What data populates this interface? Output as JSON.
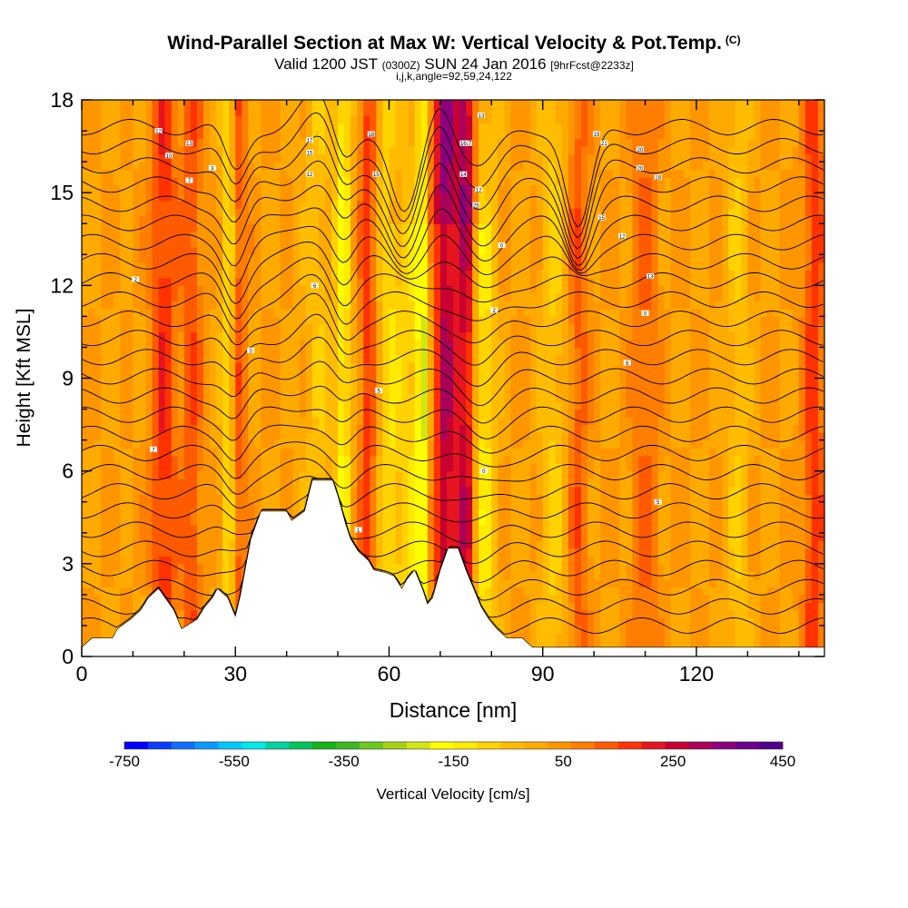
{
  "header": {
    "title": "Wind-Parallel Section at Max W: Vertical Velocity & Pot.Temp.",
    "title_suffix": "(C)",
    "valid_prefix": "Valid 1200 JST",
    "valid_utc": "(0300Z)",
    "valid_date": "SUN 24 Jan 2016",
    "forecast": "[9hrFcst@2233z]",
    "indices": "i,j,k,angle=92,59,24,122"
  },
  "chart_data": {
    "type": "heatmap",
    "xlabel": "Distance [nm]",
    "ylabel": "Height [Kft MSL]",
    "xlim": [
      0,
      145
    ],
    "ylim": [
      0,
      18
    ],
    "x_ticks": [
      0,
      30,
      60,
      90,
      120
    ],
    "y_ticks": [
      0,
      3,
      6,
      9,
      12,
      15,
      18
    ],
    "grid": false,
    "colorbar": {
      "label": "Vertical Velocity [cm/s]",
      "min": -750,
      "max": 450,
      "step": 50,
      "tick_labels": [
        "-750",
        "-550",
        "-350",
        "-150",
        "50",
        "250",
        "450"
      ],
      "colors": [
        "#0000ff",
        "#0a3cff",
        "#0f6eff",
        "#0a9bff",
        "#00c8ff",
        "#00e8e8",
        "#00d2a0",
        "#00c35a",
        "#14b414",
        "#3cb91e",
        "#6ec81e",
        "#a5d214",
        "#d2e614",
        "#ffff00",
        "#ffea00",
        "#ffd200",
        "#ffbc00",
        "#ffaa00",
        "#ff9600",
        "#ff7d00",
        "#ff5a00",
        "#ff3200",
        "#e6141e",
        "#c80032",
        "#aa005a",
        "#8c0080",
        "#6e008c",
        "#50008c"
      ]
    },
    "terrain_kft": [
      {
        "x": 0,
        "h": 0.3
      },
      {
        "x": 2,
        "h": 0.6
      },
      {
        "x": 6,
        "h": 0.6
      },
      {
        "x": 7,
        "h": 0.9
      },
      {
        "x": 9.5,
        "h": 1.2
      },
      {
        "x": 11.5,
        "h": 1.5
      },
      {
        "x": 13,
        "h": 1.9
      },
      {
        "x": 15,
        "h": 2.2
      },
      {
        "x": 18,
        "h": 1.5
      },
      {
        "x": 19.5,
        "h": 0.9
      },
      {
        "x": 22.5,
        "h": 1.2
      },
      {
        "x": 24,
        "h": 1.6
      },
      {
        "x": 25.5,
        "h": 1.9
      },
      {
        "x": 26.5,
        "h": 2.2
      },
      {
        "x": 28.5,
        "h": 1.9
      },
      {
        "x": 30,
        "h": 1.3
      },
      {
        "x": 31,
        "h": 2.0
      },
      {
        "x": 33,
        "h": 3.8
      },
      {
        "x": 35,
        "h": 4.7
      },
      {
        "x": 40,
        "h": 4.7
      },
      {
        "x": 41,
        "h": 4.4
      },
      {
        "x": 43.5,
        "h": 4.7
      },
      {
        "x": 45,
        "h": 5.7
      },
      {
        "x": 49,
        "h": 5.7
      },
      {
        "x": 50,
        "h": 5.2
      },
      {
        "x": 51.5,
        "h": 4.3
      },
      {
        "x": 52.5,
        "h": 3.8
      },
      {
        "x": 54,
        "h": 3.4
      },
      {
        "x": 56,
        "h": 3.1
      },
      {
        "x": 57,
        "h": 2.8
      },
      {
        "x": 59.5,
        "h": 2.7
      },
      {
        "x": 61,
        "h": 2.6
      },
      {
        "x": 62.5,
        "h": 2.2
      },
      {
        "x": 63.5,
        "h": 2.5
      },
      {
        "x": 65,
        "h": 2.8
      },
      {
        "x": 66.5,
        "h": 2.2
      },
      {
        "x": 67.5,
        "h": 1.7
      },
      {
        "x": 68.5,
        "h": 1.9
      },
      {
        "x": 70,
        "h": 2.8
      },
      {
        "x": 71.5,
        "h": 3.5
      },
      {
        "x": 73.5,
        "h": 3.5
      },
      {
        "x": 75,
        "h": 2.8
      },
      {
        "x": 76.5,
        "h": 2.2
      },
      {
        "x": 78,
        "h": 1.6
      },
      {
        "x": 79.5,
        "h": 1.2
      },
      {
        "x": 81,
        "h": 0.9
      },
      {
        "x": 83,
        "h": 0.6
      },
      {
        "x": 86,
        "h": 0.6
      },
      {
        "x": 88,
        "h": 0.3
      },
      {
        "x": 145,
        "h": 0.3
      }
    ],
    "velocity_features": [
      {
        "x": 16,
        "w": 2.5,
        "v": 160
      },
      {
        "x": 21.5,
        "w": 2,
        "v": 120
      },
      {
        "x": 29,
        "w": 1.6,
        "v": -150
      },
      {
        "x": 30.5,
        "w": 1.5,
        "v": 160
      },
      {
        "x": 46,
        "w": 2.5,
        "v": -80
      },
      {
        "x": 51,
        "w": 1.6,
        "v": -170
      },
      {
        "x": 56,
        "w": 1.8,
        "v": 150
      },
      {
        "x": 60,
        "w": 2.5,
        "v": -130
      },
      {
        "x": 64,
        "w": 1.8,
        "v": -110
      },
      {
        "x": 66.5,
        "w": 1.2,
        "v": -230
      },
      {
        "x": 71,
        "w": 2.2,
        "v": 260
      },
      {
        "x": 75,
        "w": 1.8,
        "v": 240
      },
      {
        "x": 78.5,
        "w": 2.2,
        "v": -150
      },
      {
        "x": 92,
        "w": 2.5,
        "v": -90
      },
      {
        "x": 97,
        "w": 2,
        "v": 110
      },
      {
        "x": 110,
        "w": 2.5,
        "v": 90
      },
      {
        "x": 128,
        "w": 2,
        "v": -80
      },
      {
        "x": 143,
        "w": 2,
        "v": 160
      }
    ],
    "theta_contours": {
      "interval": 1,
      "inline_labels": [
        {
          "x": 10.5,
          "h": 12.2,
          "text": "2"
        },
        {
          "x": 14,
          "h": 6.7,
          "text": "7"
        },
        {
          "x": 33,
          "h": 9.9,
          "text": "0"
        },
        {
          "x": 45.5,
          "h": 12.0,
          "text": "6"
        },
        {
          "x": 58,
          "h": 8.6,
          "text": "5"
        },
        {
          "x": 54,
          "h": 4.1,
          "text": "1"
        },
        {
          "x": 78.5,
          "h": 6.0,
          "text": "0"
        },
        {
          "x": 80.5,
          "h": 11.2,
          "text": "2"
        },
        {
          "x": 106.5,
          "h": 9.5,
          "text": "6"
        },
        {
          "x": 112.5,
          "h": 5.0,
          "text": "5"
        },
        {
          "x": 110,
          "h": 11.1,
          "text": "0"
        },
        {
          "x": 111,
          "h": 12.3,
          "text": "13"
        },
        {
          "x": 105.5,
          "h": 13.6,
          "text": "12"
        },
        {
          "x": 101.5,
          "h": 14.2,
          "text": "15"
        },
        {
          "x": 82,
          "h": 13.3,
          "text": "0"
        },
        {
          "x": 77.5,
          "h": 15.1,
          "text": "12"
        },
        {
          "x": 77,
          "h": 14.6,
          "text": "25"
        },
        {
          "x": 74.5,
          "h": 15.6,
          "text": "14"
        },
        {
          "x": 75.5,
          "h": 16.6,
          "text": "17"
        },
        {
          "x": 74.5,
          "h": 16.6,
          "text": "16"
        },
        {
          "x": 78,
          "h": 17.5,
          "text": "13"
        },
        {
          "x": 56.5,
          "h": 16.9,
          "text": "18"
        },
        {
          "x": 44.5,
          "h": 16.7,
          "text": "17"
        },
        {
          "x": 44.5,
          "h": 16.3,
          "text": "15"
        },
        {
          "x": 44.5,
          "h": 15.6,
          "text": "12"
        },
        {
          "x": 57.5,
          "h": 15.6,
          "text": "15"
        },
        {
          "x": 25.5,
          "h": 15.8,
          "text": "3"
        },
        {
          "x": 21,
          "h": 16.6,
          "text": "13"
        },
        {
          "x": 17,
          "h": 16.2,
          "text": "10"
        },
        {
          "x": 15,
          "h": 17.0,
          "text": "12"
        },
        {
          "x": 21,
          "h": 15.4,
          "text": "7"
        },
        {
          "x": 100.5,
          "h": 16.9,
          "text": "19"
        },
        {
          "x": 102,
          "h": 16.6,
          "text": "21"
        },
        {
          "x": 109,
          "h": 16.4,
          "text": "20"
        },
        {
          "x": 109,
          "h": 15.8,
          "text": "20"
        },
        {
          "x": 112.5,
          "h": 15.5,
          "text": "18"
        }
      ]
    }
  }
}
